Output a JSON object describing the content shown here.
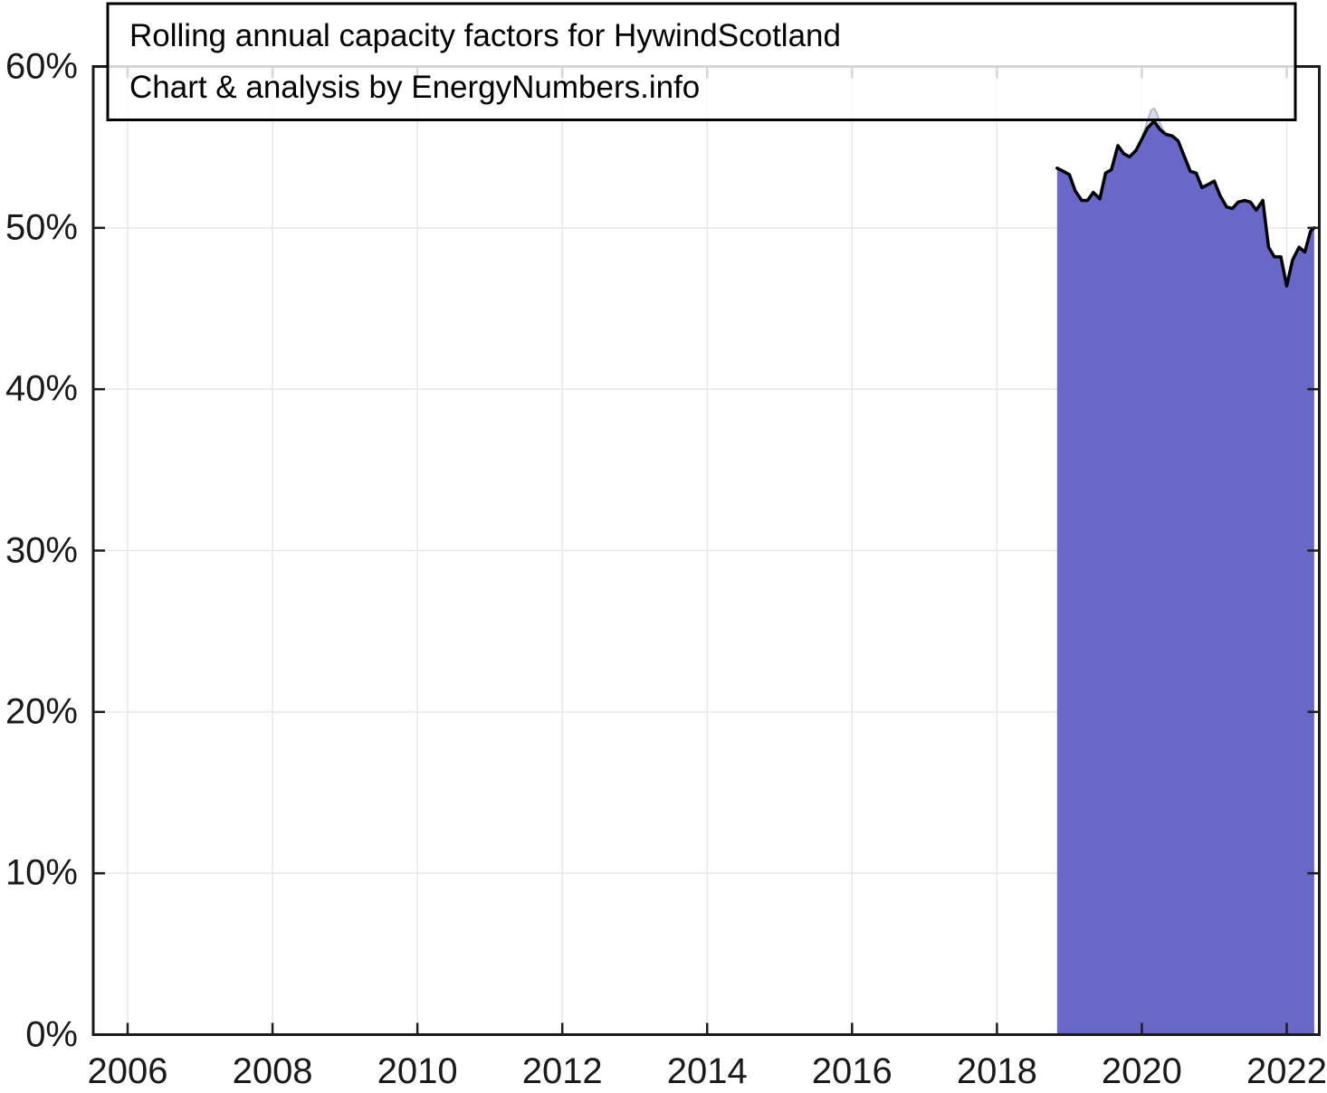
{
  "title_box": {
    "line1": "Rolling annual capacity factors for HywindScotland",
    "line2": "Chart & analysis by EnergyNumbers.info"
  },
  "colors": {
    "background": "#ffffff",
    "area_fill": "#6967C8",
    "data_line": "#000000",
    "overlay_fill": "#D9DBED",
    "overlay_stroke": "#A9ADC9",
    "gridline": "#E8E8E8",
    "axis": "#1C1C1C",
    "tick_label_text": "#1a1a1a",
    "title_text": "#000000",
    "title_box_border": "#000000",
    "title_box_fill_rgba": "rgba(255,255,255,0.82)"
  },
  "chart_data": {
    "type": "area",
    "title": "Rolling annual capacity factors for HywindScotland",
    "subtitle": "Chart & analysis by EnergyNumbers.info",
    "xlabel": "",
    "ylabel": "",
    "unit": "%",
    "grid": true,
    "legend": false,
    "xlim": [
      2005.525,
      2022.45
    ],
    "ylim": [
      0,
      60
    ],
    "x_ticks": [
      2006,
      2008,
      2010,
      2012,
      2014,
      2016,
      2018,
      2020,
      2022
    ],
    "x_tick_labels": [
      "2006",
      "2008",
      "2010",
      "2012",
      "2014",
      "2016",
      "2018",
      "2020",
      "2022"
    ],
    "y_ticks": [
      0,
      10,
      20,
      30,
      40,
      50,
      60
    ],
    "y_tick_labels": [
      "0%",
      "10%",
      "20%",
      "30%",
      "40%",
      "50%",
      "60%"
    ],
    "series": [
      {
        "name": "rolling annual capacity factor",
        "role": "main",
        "x": [
          2018.83,
          2018.92,
          2019.0,
          2019.08,
          2019.17,
          2019.25,
          2019.33,
          2019.42,
          2019.5,
          2019.58,
          2019.67,
          2019.75,
          2019.83,
          2019.92,
          2020.0,
          2020.08,
          2020.17,
          2020.25,
          2020.33,
          2020.42,
          2020.5,
          2020.58,
          2020.67,
          2020.75,
          2020.83,
          2020.92,
          2021.0,
          2021.08,
          2021.17,
          2021.25,
          2021.33,
          2021.42,
          2021.5,
          2021.58,
          2021.67,
          2021.75,
          2021.83,
          2021.92,
          2022.0,
          2022.08,
          2022.17,
          2022.25,
          2022.33,
          2022.38
        ],
        "values": [
          53.7,
          53.5,
          53.3,
          52.3,
          51.7,
          51.7,
          52.2,
          51.8,
          53.4,
          53.6,
          55.1,
          54.6,
          54.4,
          54.8,
          55.5,
          56.2,
          56.6,
          56.1,
          55.8,
          55.7,
          55.4,
          54.5,
          53.5,
          53.4,
          52.5,
          52.7,
          52.9,
          52.0,
          51.3,
          51.2,
          51.6,
          51.7,
          51.6,
          51.1,
          51.7,
          48.8,
          48.2,
          48.2,
          46.4,
          48.0,
          48.8,
          48.5,
          49.8,
          50.0
        ]
      },
      {
        "name": "peak background shading",
        "role": "overlay",
        "x": [
          2019.92,
          2020.0,
          2020.08,
          2020.13,
          2020.17,
          2020.21,
          2020.25,
          2020.29,
          2020.33
        ],
        "values": [
          54.8,
          55.6,
          56.7,
          57.3,
          57.4,
          57.1,
          56.5,
          56.1,
          55.85
        ]
      }
    ]
  }
}
